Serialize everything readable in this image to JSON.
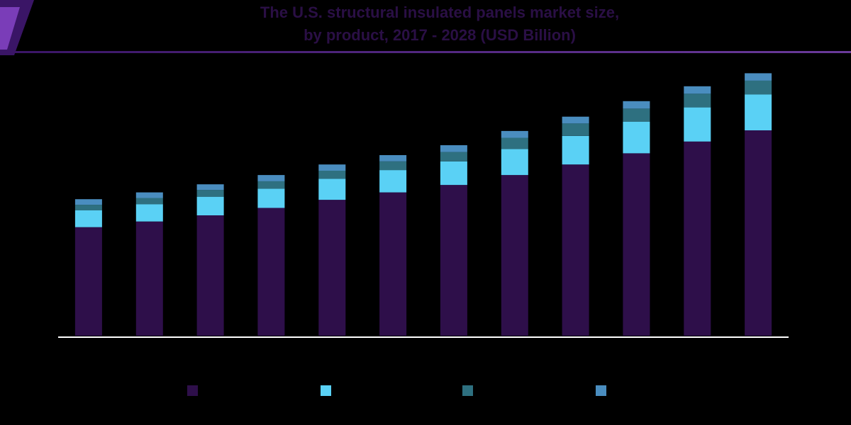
{
  "chart_data": {
    "type": "bar",
    "stacked": true,
    "title_line1": "The U.S. structural insulated panels market size,",
    "title_line2": "by product, 2017 - 2028 (USD Billion)",
    "categories": [
      "",
      "",
      "",
      "",
      "",
      "",
      "",
      "",
      "",
      "",
      "",
      ""
    ],
    "ylim": [
      0,
      4.2
    ],
    "series": [
      {
        "values": [
          1.75,
          1.84,
          1.94,
          2.06,
          2.19,
          2.31,
          2.43,
          2.59,
          2.76,
          2.94,
          3.13,
          3.31
        ],
        "color": "#2e0f4a"
      },
      {
        "values": [
          0.27,
          0.28,
          0.3,
          0.31,
          0.34,
          0.36,
          0.38,
          0.42,
          0.46,
          0.51,
          0.55,
          0.58
        ],
        "color": "#5ad1f5"
      },
      {
        "values": [
          0.09,
          0.1,
          0.11,
          0.12,
          0.13,
          0.14,
          0.15,
          0.18,
          0.2,
          0.21,
          0.22,
          0.22
        ],
        "color": "#2e7080"
      },
      {
        "values": [
          0.09,
          0.09,
          0.09,
          0.1,
          0.1,
          0.1,
          0.11,
          0.11,
          0.11,
          0.12,
          0.12,
          0.12
        ],
        "color": "#4a8dbf"
      }
    ],
    "legend_position": "bottom",
    "grid": false
  },
  "colors": {
    "title": "#2a0f45",
    "rule": "#6a3a9a",
    "axis": "#ffffff",
    "accent_dark": "#2a0f45",
    "accent_light": "#7a3db8"
  }
}
